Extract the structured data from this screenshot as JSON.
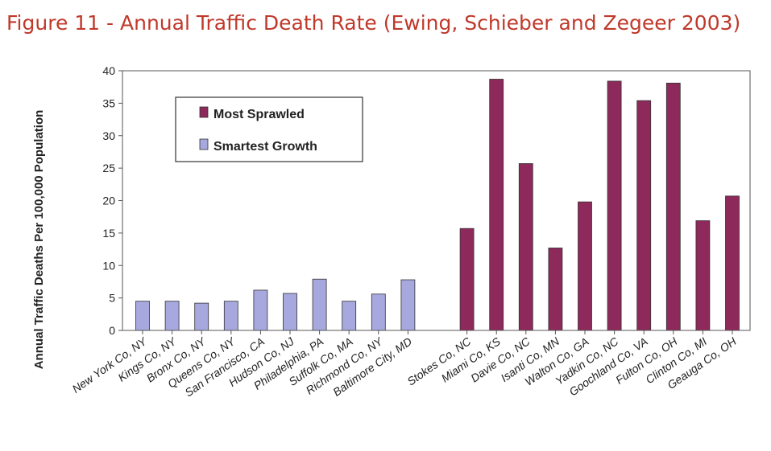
{
  "figure_title": "Figure 11 - Annual Traffic Death Rate (Ewing, Schieber and Zegeer 2003)",
  "colors": {
    "title": "#c0392b",
    "smartest_growth": "#a6a8de",
    "most_sprawled": "#8e2a5b",
    "bar_edge": "#333333"
  },
  "chart_data": {
    "type": "bar",
    "title": "",
    "xlabel": "",
    "ylabel": "Annual Traffic Deaths Per 100,000 Population",
    "ylim": [
      0,
      40
    ],
    "yticks": [
      0,
      5,
      10,
      15,
      20,
      25,
      30,
      35,
      40
    ],
    "grid": false,
    "legend_position": "upper-left",
    "categories": [
      "New York Co, NY",
      "Kings Co, NY",
      "Bronx Co, NY",
      "Queens Co, NY",
      "San Francisco, CA",
      "Hudson Co, NJ",
      "Philadelphia, PA",
      "Suffolk Co, MA",
      "Richmond Co, NY",
      "Baltimore City, MD",
      "Stokes Co, NC",
      "Miami Co, KS",
      "Davie Co, NC",
      "Isanti Co, MN",
      "Walton Co, GA",
      "Yadkin Co, NC",
      "Goochland Co, VA",
      "Fulton Co, OH",
      "Clinton Co, MI",
      "Geauga Co, OH"
    ],
    "series": [
      {
        "name": "Most Sprawled",
        "color": "#8e2a5b",
        "values": [
          null,
          null,
          null,
          null,
          null,
          null,
          null,
          null,
          null,
          null,
          15.7,
          38.7,
          25.7,
          12.7,
          19.8,
          38.4,
          35.4,
          38.1,
          16.9,
          20.7
        ]
      },
      {
        "name": "Smartest Growth",
        "color": "#a6a8de",
        "values": [
          4.5,
          4.5,
          4.2,
          4.5,
          6.2,
          5.7,
          7.9,
          4.5,
          5.6,
          7.8,
          null,
          null,
          null,
          null,
          null,
          null,
          null,
          null,
          null,
          null
        ]
      }
    ]
  }
}
